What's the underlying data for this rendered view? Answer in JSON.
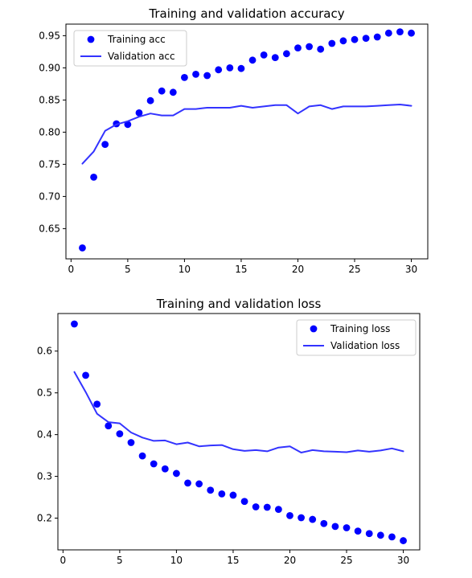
{
  "chart_data": [
    {
      "type": "line",
      "title": "Training and validation accuracy",
      "xlabel": "",
      "ylabel": "",
      "xlim": [
        -0.45,
        31.45
      ],
      "ylim": [
        0.603,
        0.968
      ],
      "xticks": [
        0,
        5,
        10,
        15,
        20,
        25,
        30
      ],
      "yticks": [
        0.65,
        0.7,
        0.75,
        0.8,
        0.85,
        0.9,
        0.95
      ],
      "ytick_labels": [
        "0.65",
        "0.70",
        "0.75",
        "0.80",
        "0.85",
        "0.90",
        "0.95"
      ],
      "grid": false,
      "legend": "top-left",
      "x": [
        1,
        2,
        3,
        4,
        5,
        6,
        7,
        8,
        9,
        10,
        11,
        12,
        13,
        14,
        15,
        16,
        17,
        18,
        19,
        20,
        21,
        22,
        23,
        24,
        25,
        26,
        27,
        28,
        29,
        30
      ],
      "series": [
        {
          "name": "Training acc",
          "style": "dots",
          "color": "#0000ff",
          "values": [
            0.62,
            0.73,
            0.781,
            0.813,
            0.812,
            0.83,
            0.849,
            0.864,
            0.862,
            0.885,
            0.89,
            0.888,
            0.897,
            0.9,
            0.899,
            0.912,
            0.92,
            0.916,
            0.922,
            0.931,
            0.933,
            0.929,
            0.938,
            0.942,
            0.944,
            0.946,
            0.948,
            0.954,
            0.956,
            0.954
          ]
        },
        {
          "name": "Validation acc",
          "style": "line",
          "color": "#3333ff",
          "values": [
            0.751,
            0.77,
            0.802,
            0.812,
            0.817,
            0.824,
            0.829,
            0.826,
            0.826,
            0.836,
            0.836,
            0.838,
            0.838,
            0.838,
            0.841,
            0.838,
            0.84,
            0.842,
            0.842,
            0.829,
            0.84,
            0.842,
            0.836,
            0.84,
            0.84,
            0.84,
            0.841,
            0.842,
            0.843,
            0.841
          ]
        }
      ]
    },
    {
      "type": "line",
      "title": "Training and validation loss",
      "xlabel": "",
      "ylabel": "",
      "xlim": [
        -0.45,
        31.45
      ],
      "ylim": [
        0.124,
        0.69
      ],
      "xticks": [
        0,
        5,
        10,
        15,
        20,
        25,
        30
      ],
      "yticks": [
        0.2,
        0.3,
        0.4,
        0.5,
        0.6
      ],
      "ytick_labels": [
        "0.2",
        "0.3",
        "0.4",
        "0.5",
        "0.6"
      ],
      "grid": false,
      "legend": "top-right",
      "x": [
        1,
        2,
        3,
        4,
        5,
        6,
        7,
        8,
        9,
        10,
        11,
        12,
        13,
        14,
        15,
        16,
        17,
        18,
        19,
        20,
        21,
        22,
        23,
        24,
        25,
        26,
        27,
        28,
        29,
        30
      ],
      "series": [
        {
          "name": "Training loss",
          "style": "dots",
          "color": "#0000ff",
          "values": [
            0.665,
            0.542,
            0.473,
            0.421,
            0.402,
            0.381,
            0.349,
            0.33,
            0.318,
            0.307,
            0.284,
            0.282,
            0.267,
            0.258,
            0.255,
            0.24,
            0.227,
            0.226,
            0.221,
            0.206,
            0.201,
            0.197,
            0.187,
            0.18,
            0.177,
            0.169,
            0.163,
            0.159,
            0.155,
            0.146
          ]
        },
        {
          "name": "Validation loss",
          "style": "line",
          "color": "#3333ff",
          "values": [
            0.55,
            0.502,
            0.45,
            0.43,
            0.427,
            0.405,
            0.393,
            0.385,
            0.386,
            0.377,
            0.381,
            0.372,
            0.374,
            0.375,
            0.365,
            0.361,
            0.363,
            0.36,
            0.369,
            0.372,
            0.357,
            0.363,
            0.36,
            0.359,
            0.358,
            0.362,
            0.359,
            0.362,
            0.367,
            0.36
          ]
        }
      ]
    }
  ]
}
